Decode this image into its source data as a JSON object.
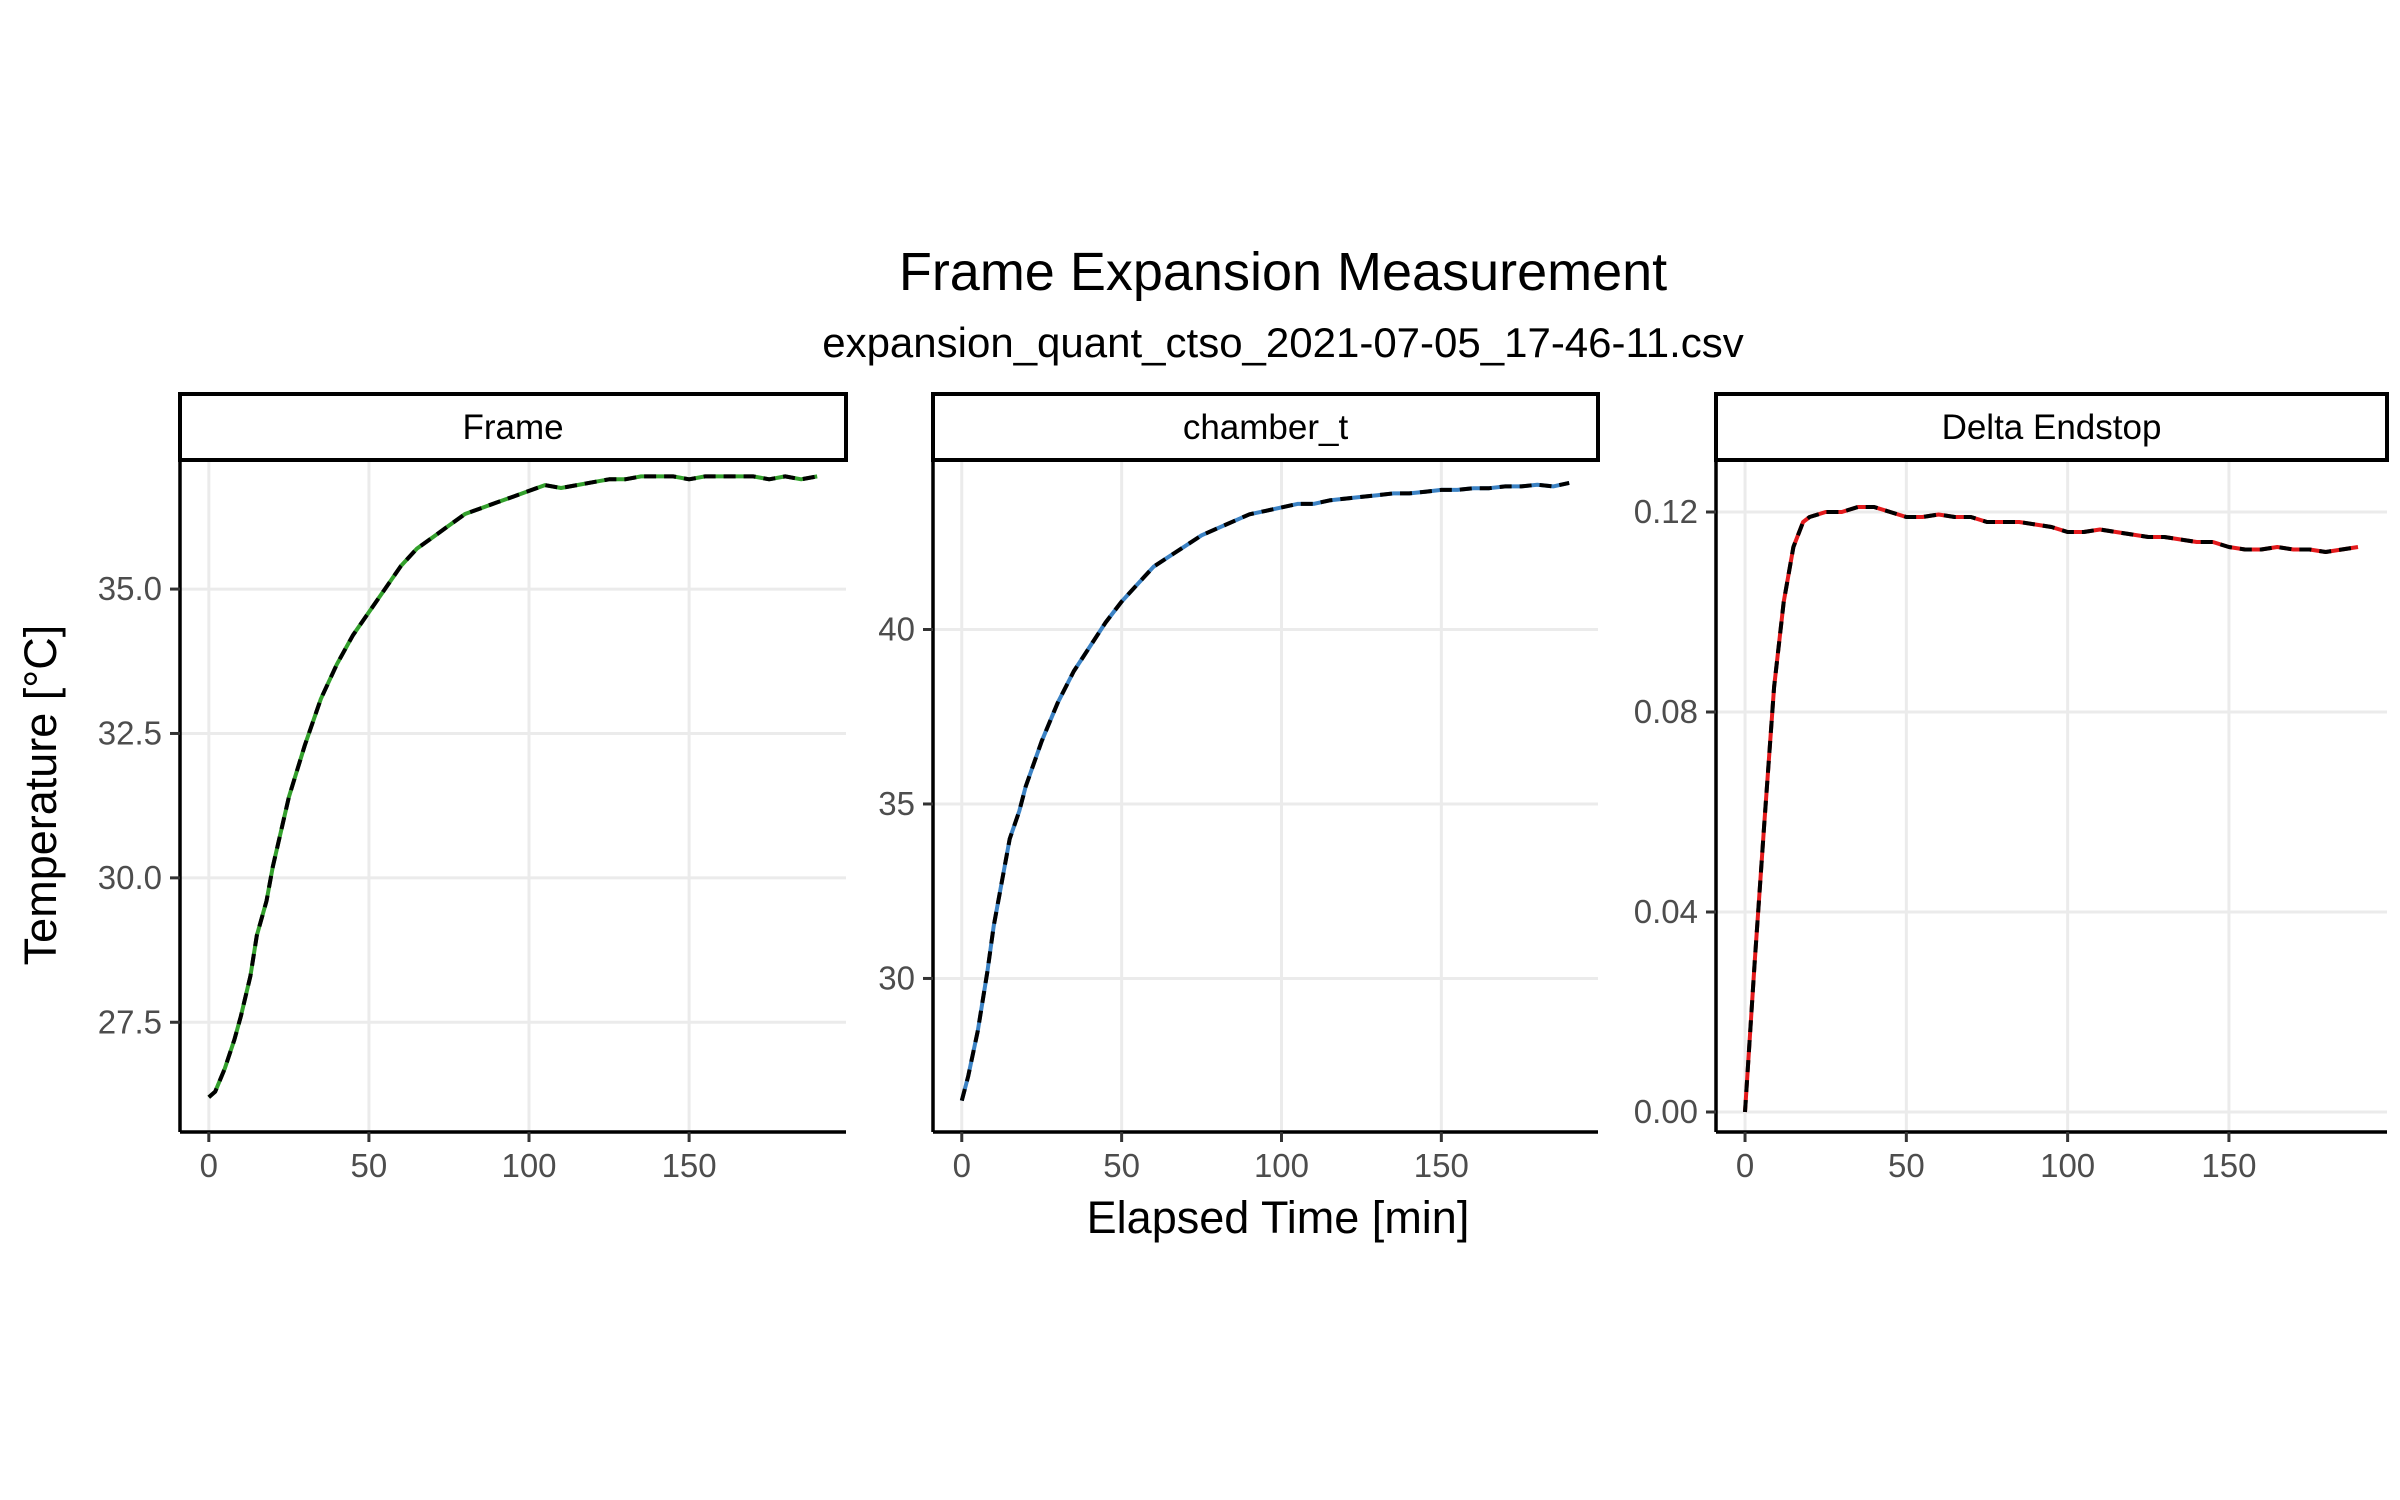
{
  "chart_data": {
    "type": "line",
    "title": "Frame Expansion Measurement",
    "subtitle": "expansion_quant_ctso_2021-07-05_17-46-11.csv",
    "xlabel": "Elapsed Time [min]",
    "ylabel": "Temperature [°C]",
    "grid": true,
    "legend": "none",
    "panels": [
      {
        "strip": "Frame",
        "color": "#33a02c",
        "overlay_color": "#000000",
        "xlim": [
          -9,
          199
        ],
        "ylim": [
          25.6,
          37.2
        ],
        "xticks": [
          0,
          50,
          100,
          150
        ],
        "xtick_labels": [
          "0",
          "50",
          "100",
          "150"
        ],
        "yticks": [
          27.5,
          30.0,
          32.5,
          35.0
        ],
        "ytick_labels": [
          "27.5",
          "30.0",
          "32.5",
          "35.0"
        ],
        "x": [
          0,
          2,
          5,
          8,
          10,
          13,
          15,
          18,
          20,
          25,
          30,
          35,
          40,
          45,
          50,
          55,
          60,
          65,
          70,
          75,
          80,
          85,
          90,
          95,
          100,
          105,
          110,
          115,
          120,
          125,
          130,
          135,
          140,
          145,
          150,
          155,
          160,
          165,
          170,
          175,
          180,
          185,
          190
        ],
        "values": [
          26.2,
          26.3,
          26.7,
          27.2,
          27.6,
          28.3,
          29.0,
          29.6,
          30.2,
          31.4,
          32.3,
          33.1,
          33.7,
          34.2,
          34.6,
          35.0,
          35.4,
          35.7,
          35.9,
          36.1,
          36.3,
          36.4,
          36.5,
          36.6,
          36.7,
          36.8,
          36.75,
          36.8,
          36.85,
          36.9,
          36.9,
          36.95,
          36.95,
          36.95,
          36.9,
          36.95,
          36.95,
          36.95,
          36.95,
          36.9,
          36.95,
          36.9,
          36.95
        ]
      },
      {
        "strip": "chamber_t",
        "color": "#3b82c4",
        "overlay_color": "#000000",
        "xlim": [
          -9,
          199
        ],
        "ylim": [
          25.6,
          44.8
        ],
        "xticks": [
          0,
          50,
          100,
          150
        ],
        "xtick_labels": [
          "0",
          "50",
          "100",
          "150"
        ],
        "yticks": [
          30,
          35,
          40
        ],
        "ytick_labels": [
          "30",
          "35",
          "40"
        ],
        "x": [
          0,
          2,
          5,
          8,
          10,
          13,
          15,
          18,
          20,
          25,
          30,
          35,
          40,
          45,
          50,
          55,
          60,
          65,
          70,
          75,
          80,
          85,
          90,
          95,
          100,
          105,
          110,
          115,
          120,
          125,
          130,
          135,
          140,
          145,
          150,
          155,
          160,
          165,
          170,
          175,
          180,
          185,
          190
        ],
        "values": [
          26.5,
          27.2,
          28.5,
          30.2,
          31.5,
          33.0,
          34.0,
          34.8,
          35.5,
          36.8,
          37.9,
          38.8,
          39.5,
          40.2,
          40.8,
          41.3,
          41.8,
          42.1,
          42.4,
          42.7,
          42.9,
          43.1,
          43.3,
          43.4,
          43.5,
          43.6,
          43.6,
          43.7,
          43.75,
          43.8,
          43.85,
          43.9,
          43.9,
          43.95,
          44.0,
          44.0,
          44.05,
          44.05,
          44.1,
          44.1,
          44.15,
          44.1,
          44.2
        ]
      },
      {
        "strip": "Delta Endstop",
        "color": "#e31a1c",
        "overlay_color": "#000000",
        "xlim": [
          -9,
          199
        ],
        "ylim": [
          -0.004,
          0.13
        ],
        "xticks": [
          0,
          50,
          100,
          150
        ],
        "xtick_labels": [
          "0",
          "50",
          "100",
          "150"
        ],
        "yticks": [
          0.0,
          0.04,
          0.08,
          0.12
        ],
        "ytick_labels": [
          "0.00",
          "0.04",
          "0.08",
          "0.12"
        ],
        "x": [
          0,
          3,
          6,
          9,
          12,
          15,
          18,
          20,
          25,
          30,
          35,
          40,
          45,
          50,
          55,
          60,
          65,
          70,
          75,
          80,
          85,
          90,
          95,
          100,
          105,
          110,
          115,
          120,
          125,
          130,
          135,
          140,
          145,
          150,
          155,
          160,
          165,
          170,
          175,
          180,
          185,
          190
        ],
        "values": [
          0.0,
          0.03,
          0.058,
          0.085,
          0.102,
          0.113,
          0.118,
          0.119,
          0.12,
          0.12,
          0.121,
          0.121,
          0.12,
          0.119,
          0.119,
          0.1195,
          0.119,
          0.119,
          0.118,
          0.118,
          0.118,
          0.1175,
          0.117,
          0.116,
          0.116,
          0.1165,
          0.116,
          0.1155,
          0.115,
          0.115,
          0.1145,
          0.114,
          0.114,
          0.113,
          0.1125,
          0.1125,
          0.113,
          0.1125,
          0.1125,
          0.112,
          0.1125,
          0.113
        ]
      }
    ]
  }
}
